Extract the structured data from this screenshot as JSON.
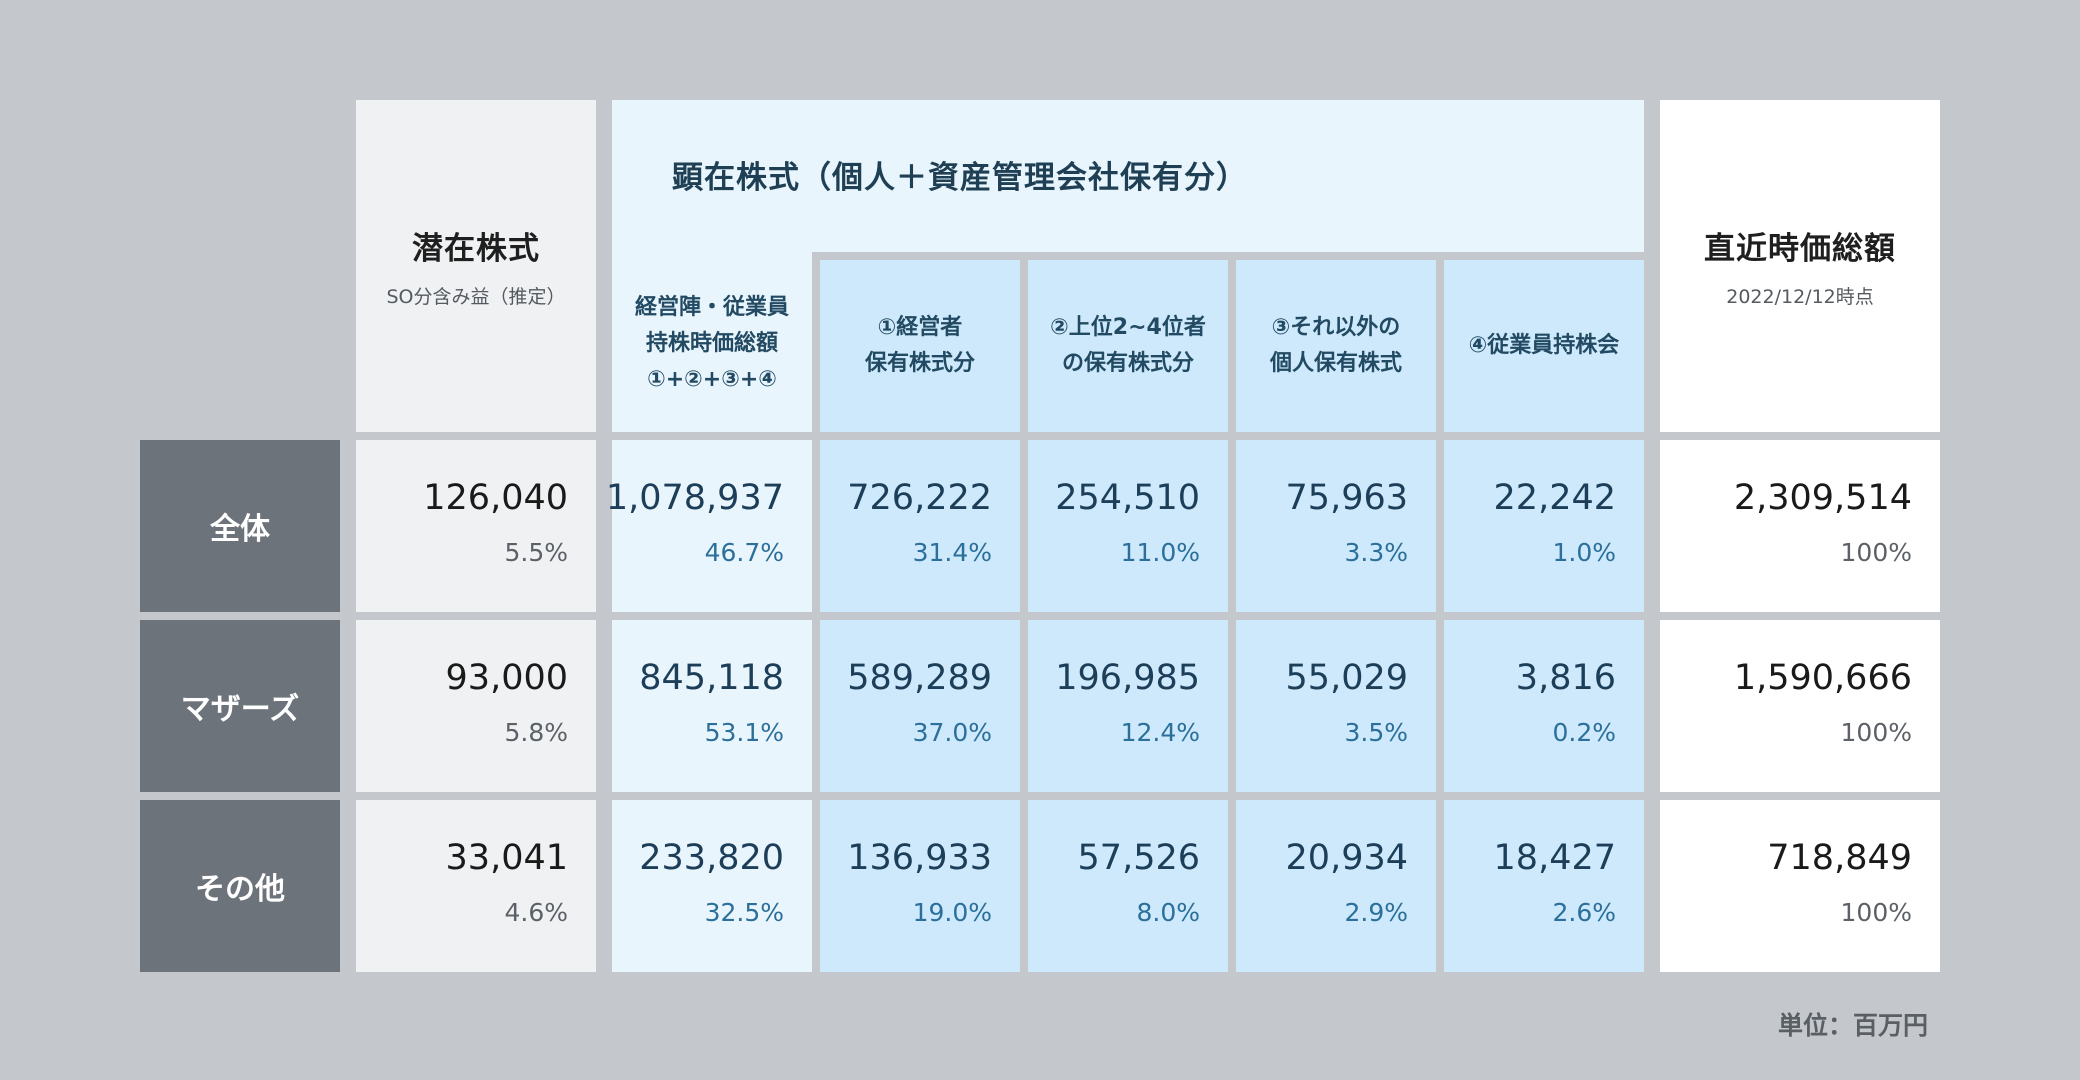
{
  "headers": {
    "latent": {
      "title": "潜在株式",
      "sub": "SO分含み益（推定）"
    },
    "manifest_group": "顕在株式（個人＋資産管理会社保有分）",
    "total_col": {
      "line1": "経営陣・従業員",
      "line2": "持株時価総額",
      "line3": "①+②+③+④"
    },
    "c1": {
      "line1": "①経営者",
      "line2": "保有株式分"
    },
    "c2": {
      "line1": "②上位2~4位者",
      "line2": "の保有株式分"
    },
    "c3": {
      "line1": "③それ以外の",
      "line2": "個人保有株式"
    },
    "c4": {
      "line1": "④従業員持株会"
    },
    "market_cap": {
      "title": "直近時価総額",
      "sub": "2022/12/12時点"
    }
  },
  "rows": [
    {
      "label": "全体",
      "latent": {
        "value": "126,040",
        "pct": "5.5%"
      },
      "total": {
        "value": "1,078,937",
        "pct": "46.7%"
      },
      "c1": {
        "value": "726,222",
        "pct": "31.4%"
      },
      "c2": {
        "value": "254,510",
        "pct": "11.0%"
      },
      "c3": {
        "value": "75,963",
        "pct": "3.3%"
      },
      "c4": {
        "value": "22,242",
        "pct": "1.0%"
      },
      "market_cap": {
        "value": "2,309,514",
        "pct": "100%"
      }
    },
    {
      "label": "マザーズ",
      "latent": {
        "value": "93,000",
        "pct": "5.8%"
      },
      "total": {
        "value": "845,118",
        "pct": "53.1%"
      },
      "c1": {
        "value": "589,289",
        "pct": "37.0%"
      },
      "c2": {
        "value": "196,985",
        "pct": "12.4%"
      },
      "c3": {
        "value": "55,029",
        "pct": "3.5%"
      },
      "c4": {
        "value": "3,816",
        "pct": "0.2%"
      },
      "market_cap": {
        "value": "1,590,666",
        "pct": "100%"
      }
    },
    {
      "label": "その他",
      "latent": {
        "value": "33,041",
        "pct": "4.6%"
      },
      "total": {
        "value": "233,820",
        "pct": "32.5%"
      },
      "c1": {
        "value": "136,933",
        "pct": "19.0%"
      },
      "c2": {
        "value": "57,526",
        "pct": "8.0%"
      },
      "c3": {
        "value": "20,934",
        "pct": "2.9%"
      },
      "c4": {
        "value": "18,427",
        "pct": "2.6%"
      },
      "market_cap": {
        "value": "718,849",
        "pct": "100%"
      }
    }
  ],
  "unit_note": "単位：百万円"
}
